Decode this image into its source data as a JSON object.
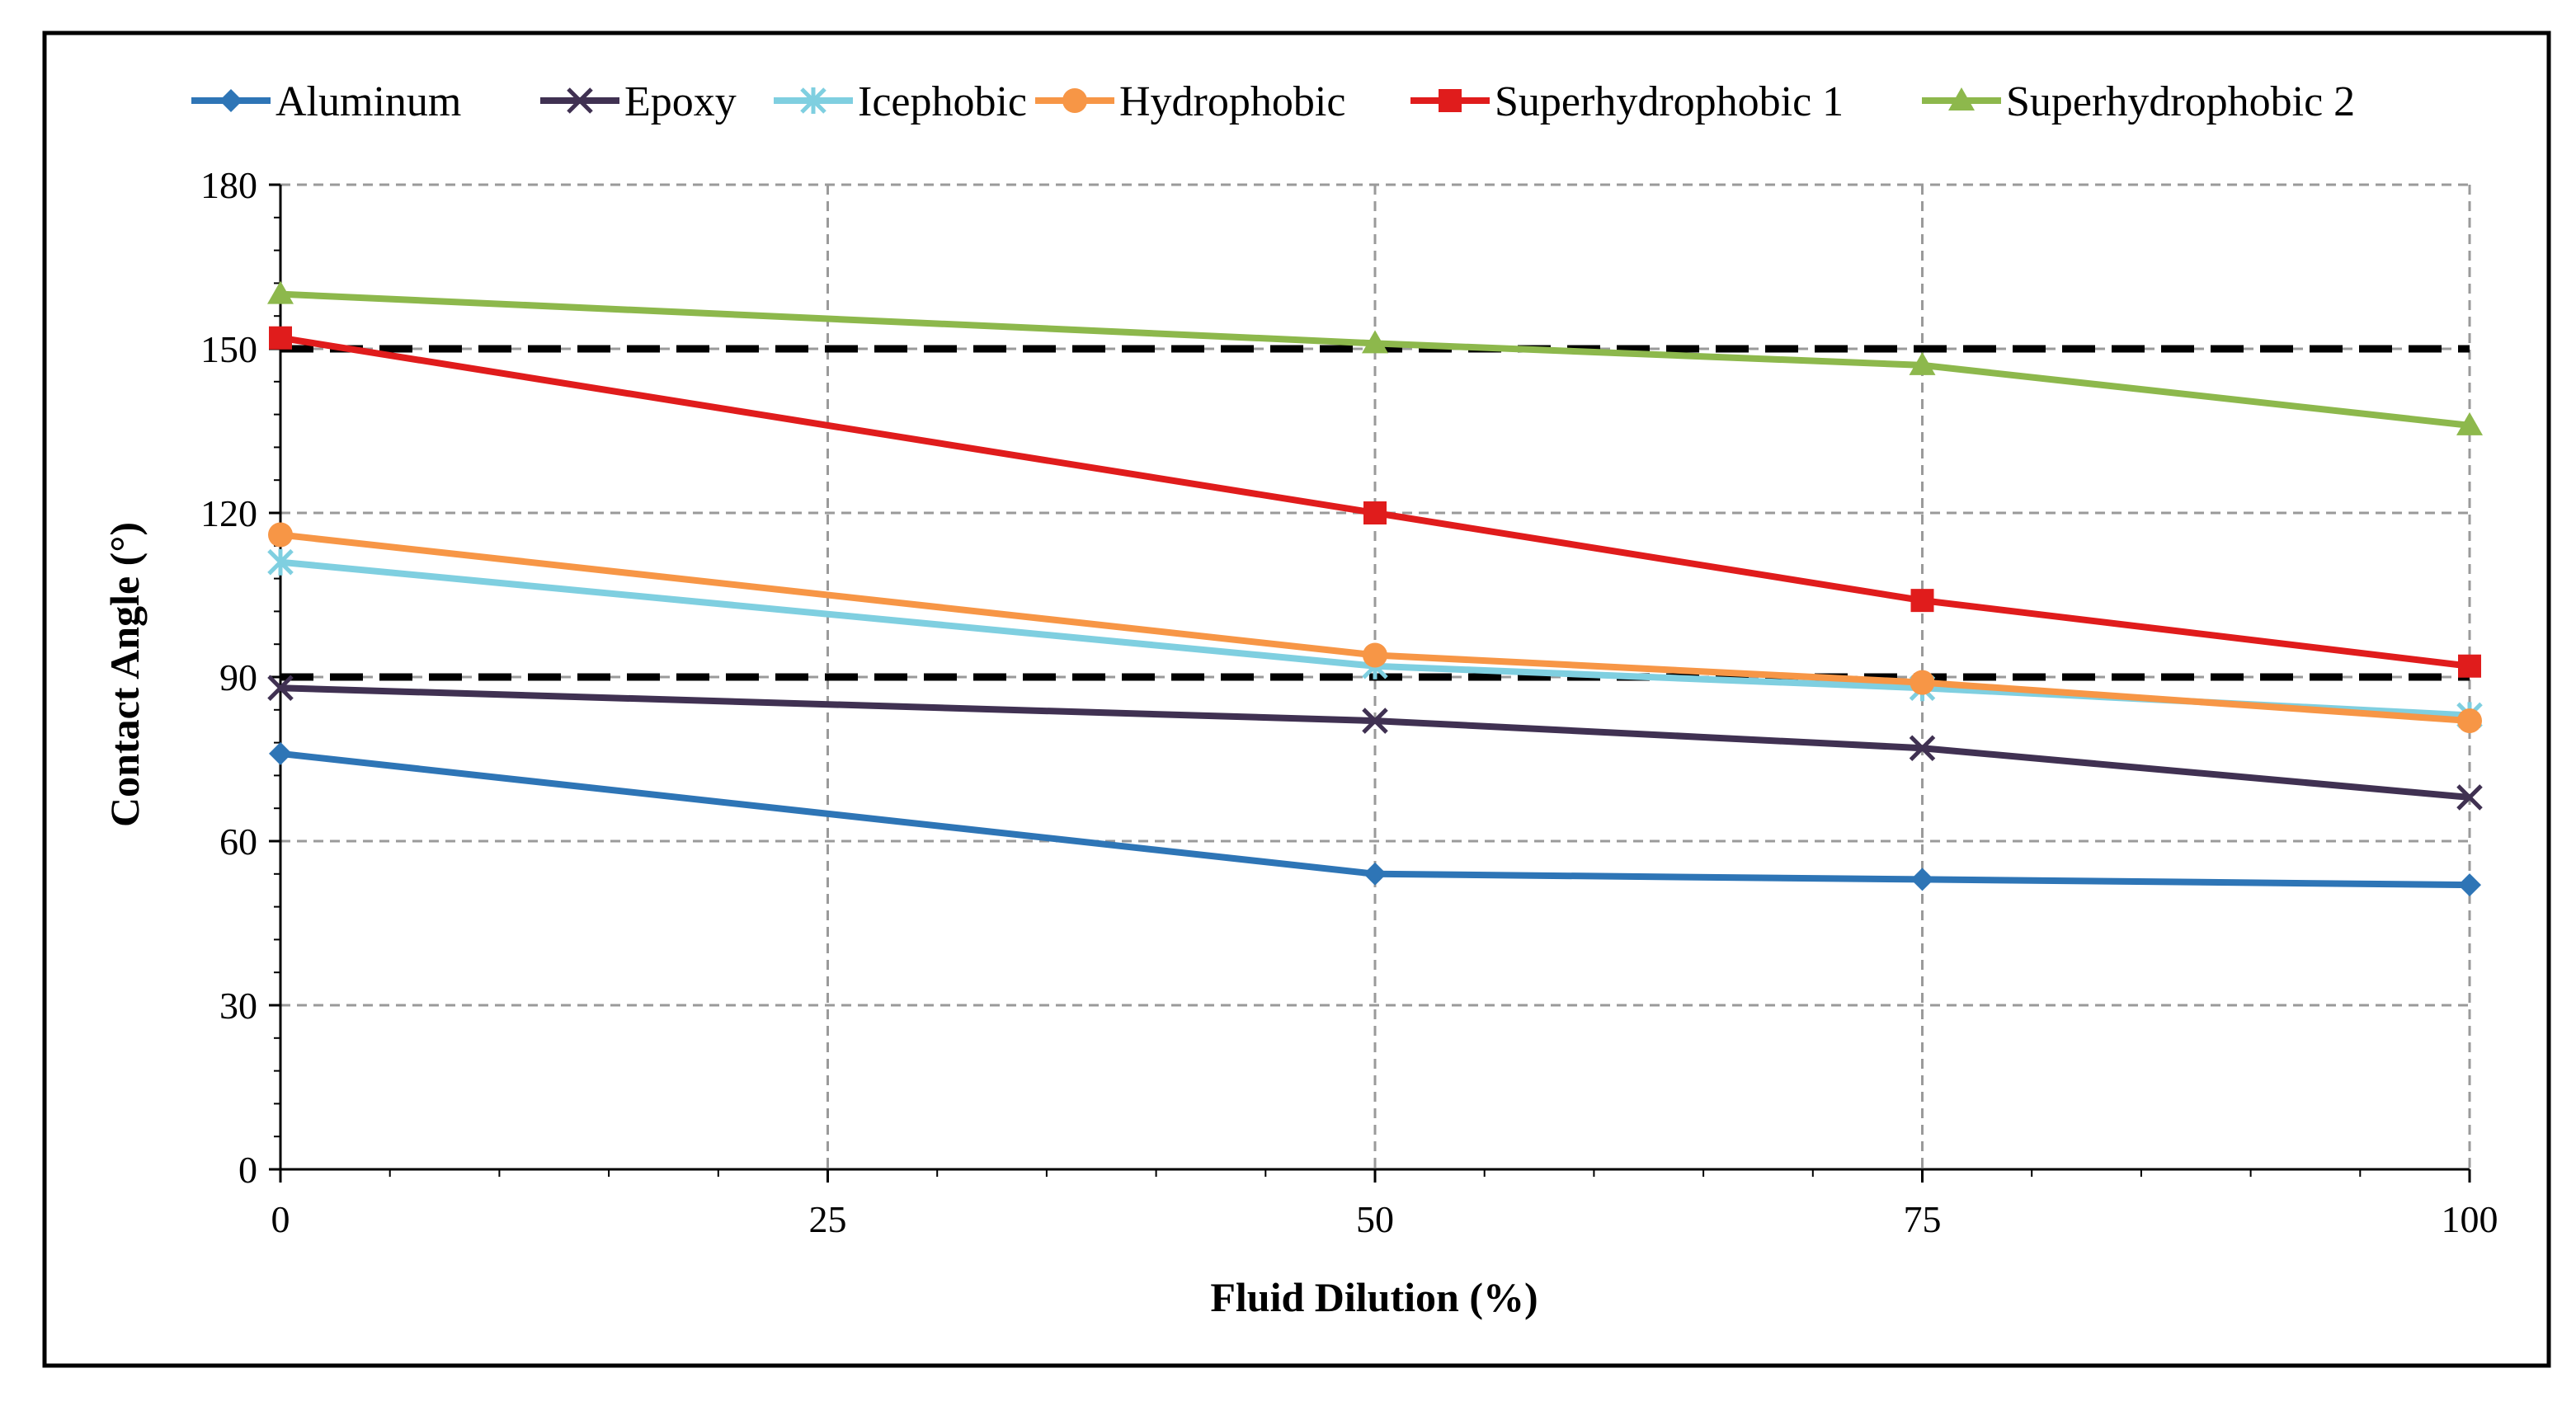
{
  "chart_data": {
    "type": "line",
    "title": "",
    "xlabel": "Fluid Dilution (%)",
    "ylabel": "Contact Angle (°)",
    "xlim": [
      0,
      100
    ],
    "ylim": [
      0,
      180
    ],
    "x_ticks": [
      0,
      25,
      50,
      75,
      100
    ],
    "x_tick_labels": [
      "0",
      "25",
      "50",
      "75",
      "100"
    ],
    "y_ticks": [
      0,
      30,
      60,
      90,
      120,
      150,
      180
    ],
    "y_tick_labels": [
      "0",
      "30",
      "60",
      "90",
      "120",
      "150",
      "180"
    ],
    "grid": true,
    "legend_position": "top",
    "x": [
      0,
      50,
      75,
      100
    ],
    "series": [
      {
        "name": "Aluminum",
        "color": "#2e75b6",
        "marker": "diamond",
        "values": [
          76,
          54,
          53,
          52
        ]
      },
      {
        "name": "Epoxy",
        "color": "#403152",
        "marker": "x",
        "values": [
          88,
          82,
          77,
          68
        ]
      },
      {
        "name": "Icephobic",
        "color": "#7fcfe0",
        "marker": "star",
        "values": [
          111,
          92,
          88,
          83
        ]
      },
      {
        "name": "Hydrophobic",
        "color": "#f79646",
        "marker": "circle",
        "values": [
          116,
          94,
          89,
          82
        ]
      },
      {
        "name": "Superhydrophobic 1",
        "color": "#e01c1c",
        "marker": "square",
        "values": [
          152,
          120,
          104,
          92
        ]
      },
      {
        "name": "Superhydrophobic 2",
        "color": "#8db84c",
        "marker": "triangle",
        "values": [
          160,
          151,
          147,
          136
        ]
      }
    ],
    "reference_lines": [
      {
        "y": 150,
        "style": "dashed",
        "color": "#000000"
      },
      {
        "y": 90,
        "style": "dashed",
        "color": "#000000"
      }
    ]
  }
}
